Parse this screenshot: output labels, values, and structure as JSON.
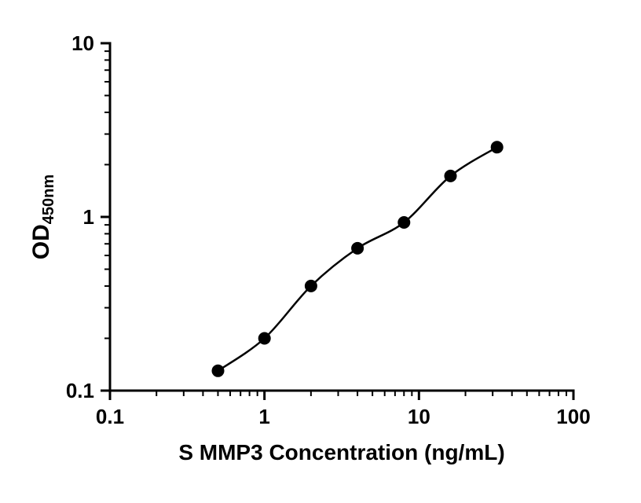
{
  "chart_data": {
    "type": "scatter",
    "x": [
      0.5,
      1,
      2,
      4,
      8,
      16,
      32
    ],
    "y": [
      0.13,
      0.2,
      0.4,
      0.66,
      0.93,
      1.72,
      2.52
    ],
    "title": "",
    "xlabel": "S MMP3 Concentration (ng/mL)",
    "ylabel_main": "OD",
    "ylabel_sub": "450nm",
    "x_scale": "log",
    "y_scale": "log",
    "xlim": [
      0.1,
      100
    ],
    "ylim": [
      0.1,
      10
    ],
    "x_ticks": [
      0.1,
      1,
      10,
      100
    ],
    "y_ticks": [
      0.1,
      1,
      10
    ],
    "x_tick_labels": [
      "0.1",
      "1",
      "10",
      "100"
    ],
    "y_tick_labels": [
      "0.1",
      "1",
      "10"
    ],
    "grid": false,
    "legend": "none",
    "marker_color": "#000000",
    "line_color": "#000000",
    "background": "#ffffff"
  }
}
